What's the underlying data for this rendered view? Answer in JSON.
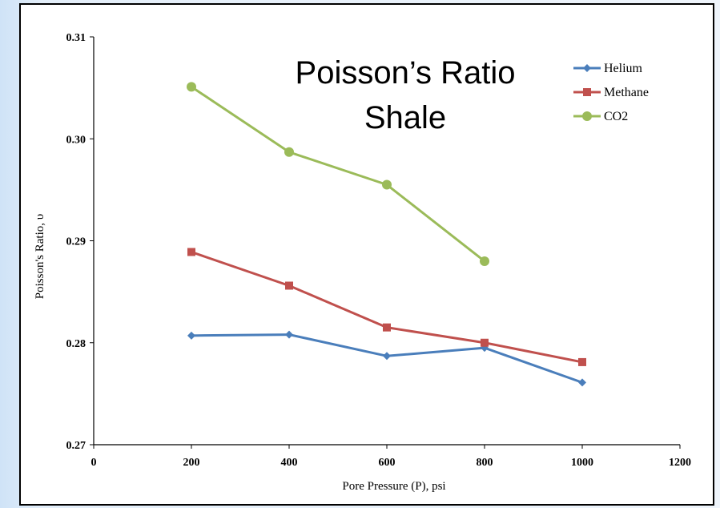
{
  "chart_data": {
    "type": "line",
    "title_line1": "Poisson’s  Ratio",
    "title_line2": "Shale",
    "xlabel": "Pore Pressure (P), psi",
    "ylabel": "Poisson's Ratio, υ",
    "xlim": [
      0,
      1200
    ],
    "ylim": [
      0.27,
      0.31
    ],
    "xticks": [
      0,
      200,
      400,
      600,
      800,
      1000,
      1200
    ],
    "yticks": [
      0.27,
      0.28,
      0.29,
      0.3,
      0.31
    ],
    "xtick_labels": [
      "0",
      "200",
      "400",
      "600",
      "800",
      "1000",
      "1200"
    ],
    "ytick_labels": [
      "0.27",
      "0.28",
      "0.29",
      "0.30",
      "0.31"
    ],
    "grid": false,
    "legend_position": "top-right",
    "series": [
      {
        "name": "Helium",
        "marker": "diamond",
        "color": "#4a7ebb",
        "x": [
          200,
          400,
          600,
          800,
          1000
        ],
        "y": [
          0.2807,
          0.2808,
          0.2787,
          0.2795,
          0.2761
        ]
      },
      {
        "name": "Methane",
        "marker": "square",
        "color": "#c0504d",
        "x": [
          200,
          400,
          600,
          800,
          1000
        ],
        "y": [
          0.2889,
          0.2856,
          0.2815,
          0.28,
          0.2781
        ]
      },
      {
        "name": "CO2",
        "marker": "circle",
        "color": "#9bbb59",
        "x": [
          200,
          400,
          600,
          800
        ],
        "y": [
          0.3051,
          0.2987,
          0.2955,
          0.288
        ]
      }
    ]
  }
}
